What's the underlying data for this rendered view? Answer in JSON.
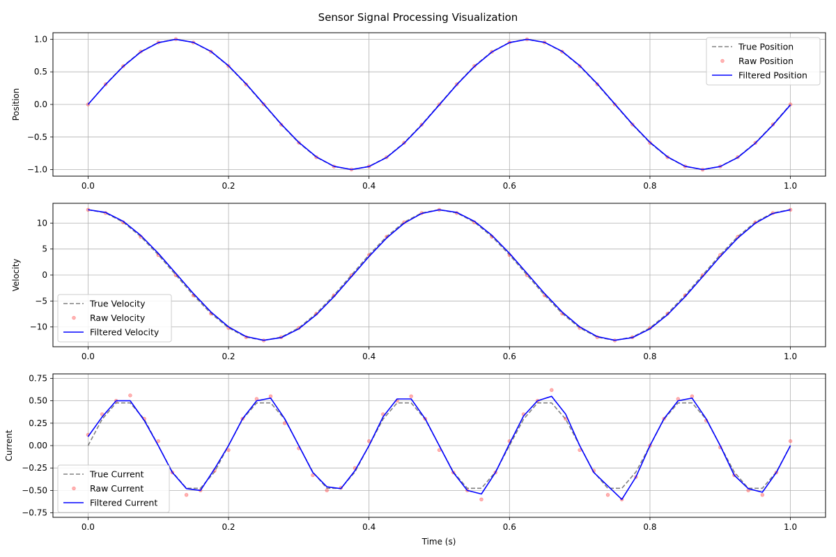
{
  "figure": {
    "title": "Sensor Signal Processing Visualization",
    "xlabel": "Time (s)"
  },
  "colors": {
    "true": "#808080",
    "raw": "#ff4040",
    "filtered": "#0000ff",
    "grid": "#b0b0b0"
  },
  "chart_data": [
    {
      "type": "line",
      "ylabel": "Position",
      "xlim": [
        -0.05,
        1.05
      ],
      "ylim": [
        -1.1,
        1.1
      ],
      "xticks": [
        0.0,
        0.2,
        0.4,
        0.6,
        0.8,
        1.0
      ],
      "xtick_labels": [
        "0.0",
        "0.2",
        "0.4",
        "0.6",
        "0.8",
        "1.0"
      ],
      "yticks": [
        1.0,
        0.5,
        0.0,
        -0.5,
        -1.0
      ],
      "ytick_labels": [
        "1.0",
        "0.5",
        "0.0",
        "−0.5",
        "−1.0"
      ],
      "grid": true,
      "legend_position": "upper-right",
      "x": [
        0.0,
        0.025,
        0.05,
        0.075,
        0.1,
        0.125,
        0.15,
        0.175,
        0.2,
        0.225,
        0.25,
        0.275,
        0.3,
        0.325,
        0.35,
        0.375,
        0.4,
        0.425,
        0.45,
        0.475,
        0.5,
        0.525,
        0.55,
        0.575,
        0.6,
        0.625,
        0.65,
        0.675,
        0.7,
        0.725,
        0.75,
        0.775,
        0.8,
        0.825,
        0.85,
        0.875,
        0.9,
        0.925,
        0.95,
        0.975,
        1.0
      ],
      "series": [
        {
          "name": "True Position",
          "style": "dashed",
          "values": [
            0.0,
            0.309,
            0.588,
            0.809,
            0.951,
            1.0,
            0.951,
            0.809,
            0.588,
            0.309,
            0.0,
            -0.309,
            -0.588,
            -0.809,
            -0.951,
            -1.0,
            -0.951,
            -0.809,
            -0.588,
            -0.309,
            0.0,
            0.309,
            0.588,
            0.809,
            0.951,
            1.0,
            0.951,
            0.809,
            0.588,
            0.309,
            0.0,
            -0.309,
            -0.588,
            -0.809,
            -0.951,
            -1.0,
            -0.951,
            -0.809,
            -0.588,
            -0.309,
            0.0
          ]
        },
        {
          "name": "Raw Position",
          "style": "scatter",
          "values": [
            0.0,
            0.31,
            0.586,
            0.811,
            0.95,
            1.002,
            0.949,
            0.81,
            0.59,
            0.307,
            0.002,
            -0.311,
            -0.586,
            -0.81,
            -0.953,
            -0.998,
            -0.95,
            -0.811,
            -0.587,
            -0.31,
            0.001,
            0.31,
            0.589,
            0.808,
            0.952,
            0.999,
            0.95,
            0.81,
            0.587,
            0.31,
            -0.001,
            -0.308,
            -0.589,
            -0.81,
            -0.95,
            -1.001,
            -0.952,
            -0.808,
            -0.589,
            -0.308,
            0.0
          ]
        },
        {
          "name": "Filtered Position",
          "style": "solid",
          "values": [
            0.0,
            0.305,
            0.582,
            0.804,
            0.947,
            0.999,
            0.953,
            0.814,
            0.594,
            0.316,
            0.008,
            -0.302,
            -0.581,
            -0.804,
            -0.948,
            -0.999,
            -0.953,
            -0.815,
            -0.595,
            -0.317,
            -0.008,
            0.302,
            0.581,
            0.804,
            0.948,
            0.999,
            0.953,
            0.815,
            0.595,
            0.317,
            0.008,
            -0.302,
            -0.581,
            -0.804,
            -0.948,
            -0.999,
            -0.953,
            -0.815,
            -0.595,
            -0.317,
            -0.008
          ]
        }
      ]
    },
    {
      "type": "line",
      "ylabel": "Velocity",
      "xlim": [
        -0.05,
        1.05
      ],
      "ylim": [
        -13.8,
        13.8
      ],
      "xticks": [
        0.0,
        0.2,
        0.4,
        0.6,
        0.8,
        1.0
      ],
      "xtick_labels": [
        "0.0",
        "0.2",
        "0.4",
        "0.6",
        "0.8",
        "1.0"
      ],
      "yticks": [
        10,
        5,
        0,
        -5,
        -10
      ],
      "ytick_labels": [
        "10",
        "5",
        "0",
        "−5",
        "−10"
      ],
      "grid": true,
      "legend_position": "lower-left",
      "x": [
        0.0,
        0.025,
        0.05,
        0.075,
        0.1,
        0.125,
        0.15,
        0.175,
        0.2,
        0.225,
        0.25,
        0.275,
        0.3,
        0.325,
        0.35,
        0.375,
        0.4,
        0.425,
        0.45,
        0.475,
        0.5,
        0.525,
        0.55,
        0.575,
        0.6,
        0.625,
        0.65,
        0.675,
        0.7,
        0.725,
        0.75,
        0.775,
        0.8,
        0.825,
        0.85,
        0.875,
        0.9,
        0.925,
        0.95,
        0.975,
        1.0
      ],
      "series": [
        {
          "name": "True Velocity",
          "style": "dashed",
          "values": [
            12.57,
            11.95,
            10.17,
            7.39,
            3.88,
            0.0,
            -3.88,
            -7.39,
            -10.17,
            -11.95,
            -12.57,
            -11.95,
            -10.17,
            -7.39,
            -3.88,
            0.0,
            3.88,
            7.39,
            10.17,
            11.95,
            12.57,
            11.95,
            10.17,
            7.39,
            3.88,
            0.0,
            -3.88,
            -7.39,
            -10.17,
            -11.95,
            -12.57,
            -11.95,
            -10.17,
            -7.39,
            -3.88,
            0.0,
            3.88,
            7.39,
            10.17,
            11.95,
            12.57
          ]
        },
        {
          "name": "Raw Velocity",
          "style": "scatter",
          "values": [
            12.55,
            11.93,
            10.14,
            7.36,
            3.85,
            -0.04,
            -3.91,
            -7.42,
            -10.2,
            -11.97,
            -12.6,
            -11.97,
            -10.19,
            -7.42,
            -3.91,
            -0.03,
            3.85,
            7.36,
            10.14,
            11.93,
            12.55,
            11.93,
            10.14,
            7.36,
            3.85,
            -0.03,
            -3.91,
            -7.42,
            -10.2,
            -11.97,
            -12.59,
            -11.97,
            -10.19,
            -7.42,
            -3.91,
            -0.03,
            3.85,
            7.36,
            10.14,
            11.93,
            12.55
          ]
        },
        {
          "name": "Filtered Velocity",
          "style": "solid",
          "values": [
            12.57,
            12.05,
            10.35,
            7.64,
            4.18,
            0.32,
            -3.57,
            -7.12,
            -9.97,
            -11.85,
            -12.55,
            -12.05,
            -10.35,
            -7.64,
            -4.18,
            -0.32,
            3.57,
            7.12,
            9.97,
            11.85,
            12.55,
            12.05,
            10.35,
            7.64,
            4.18,
            0.32,
            -3.57,
            -7.12,
            -9.97,
            -11.85,
            -12.55,
            -12.05,
            -10.35,
            -7.64,
            -4.18,
            -0.32,
            3.57,
            7.12,
            9.97,
            11.85,
            12.55
          ]
        }
      ]
    },
    {
      "type": "line",
      "ylabel": "Current",
      "xlabel": "Time (s)",
      "xlim": [
        -0.05,
        1.05
      ],
      "ylim": [
        -0.8,
        0.8
      ],
      "xticks": [
        0.0,
        0.2,
        0.4,
        0.6,
        0.8,
        1.0
      ],
      "xtick_labels": [
        "0.0",
        "0.2",
        "0.4",
        "0.6",
        "0.8",
        "1.0"
      ],
      "yticks": [
        0.75,
        0.5,
        0.25,
        0.0,
        -0.25,
        -0.5,
        -0.75
      ],
      "ytick_labels": [
        "0.75",
        "0.50",
        "0.25",
        "0.00",
        "−0.25",
        "−0.50",
        "−0.75"
      ],
      "grid": true,
      "legend_position": "lower-left",
      "x": [
        0.0,
        0.02,
        0.04,
        0.06,
        0.08,
        0.1,
        0.12,
        0.14,
        0.16,
        0.18,
        0.2,
        0.22,
        0.24,
        0.26,
        0.28,
        0.3,
        0.32,
        0.34,
        0.36,
        0.38,
        0.4,
        0.42,
        0.44,
        0.46,
        0.48,
        0.5,
        0.52,
        0.54,
        0.56,
        0.58,
        0.6,
        0.62,
        0.64,
        0.66,
        0.68,
        0.7,
        0.72,
        0.74,
        0.76,
        0.78,
        0.8,
        0.82,
        0.84,
        0.86,
        0.88,
        0.9,
        0.92,
        0.94,
        0.96,
        0.98,
        1.0
      ],
      "series": [
        {
          "name": "True Current",
          "style": "dashed",
          "values": [
            0.0,
            0.294,
            0.476,
            0.476,
            0.294,
            0.0,
            -0.294,
            -0.476,
            -0.476,
            -0.294,
            0.0,
            0.294,
            0.476,
            0.476,
            0.294,
            0.0,
            -0.294,
            -0.476,
            -0.476,
            -0.294,
            0.0,
            0.294,
            0.476,
            0.476,
            0.294,
            0.0,
            -0.294,
            -0.476,
            -0.476,
            -0.294,
            0.0,
            0.294,
            0.476,
            0.476,
            0.294,
            0.0,
            -0.294,
            -0.476,
            -0.476,
            -0.294,
            0.0,
            0.294,
            0.476,
            0.476,
            0.294,
            0.0,
            -0.294,
            -0.476,
            -0.476,
            -0.294,
            0.0
          ]
        },
        {
          "name": "Raw Current",
          "style": "scatter",
          "values": [
            0.12,
            0.35,
            0.5,
            0.56,
            0.3,
            0.05,
            -0.3,
            -0.55,
            -0.5,
            -0.28,
            -0.05,
            0.3,
            0.52,
            0.55,
            0.25,
            -0.03,
            -0.33,
            -0.5,
            -0.47,
            -0.25,
            0.05,
            0.35,
            0.5,
            0.55,
            0.3,
            -0.05,
            -0.3,
            -0.5,
            -0.6,
            -0.3,
            0.05,
            0.35,
            0.5,
            0.62,
            0.3,
            -0.05,
            -0.28,
            -0.55,
            -0.6,
            -0.35,
            0.0,
            0.3,
            0.52,
            0.55,
            0.28,
            -0.02,
            -0.33,
            -0.5,
            -0.55,
            -0.3,
            0.05
          ]
        },
        {
          "name": "Filtered Current",
          "style": "solid",
          "values": [
            0.1,
            0.32,
            0.5,
            0.5,
            0.28,
            0.0,
            -0.3,
            -0.48,
            -0.5,
            -0.26,
            0.0,
            0.3,
            0.5,
            0.53,
            0.3,
            0.0,
            -0.3,
            -0.46,
            -0.48,
            -0.28,
            0.0,
            0.32,
            0.52,
            0.52,
            0.3,
            0.0,
            -0.3,
            -0.5,
            -0.54,
            -0.3,
            0.02,
            0.33,
            0.5,
            0.55,
            0.35,
            0.0,
            -0.3,
            -0.45,
            -0.6,
            -0.35,
            0.0,
            0.3,
            0.5,
            0.53,
            0.3,
            0.0,
            -0.33,
            -0.48,
            -0.52,
            -0.3,
            0.0
          ]
        }
      ]
    }
  ]
}
